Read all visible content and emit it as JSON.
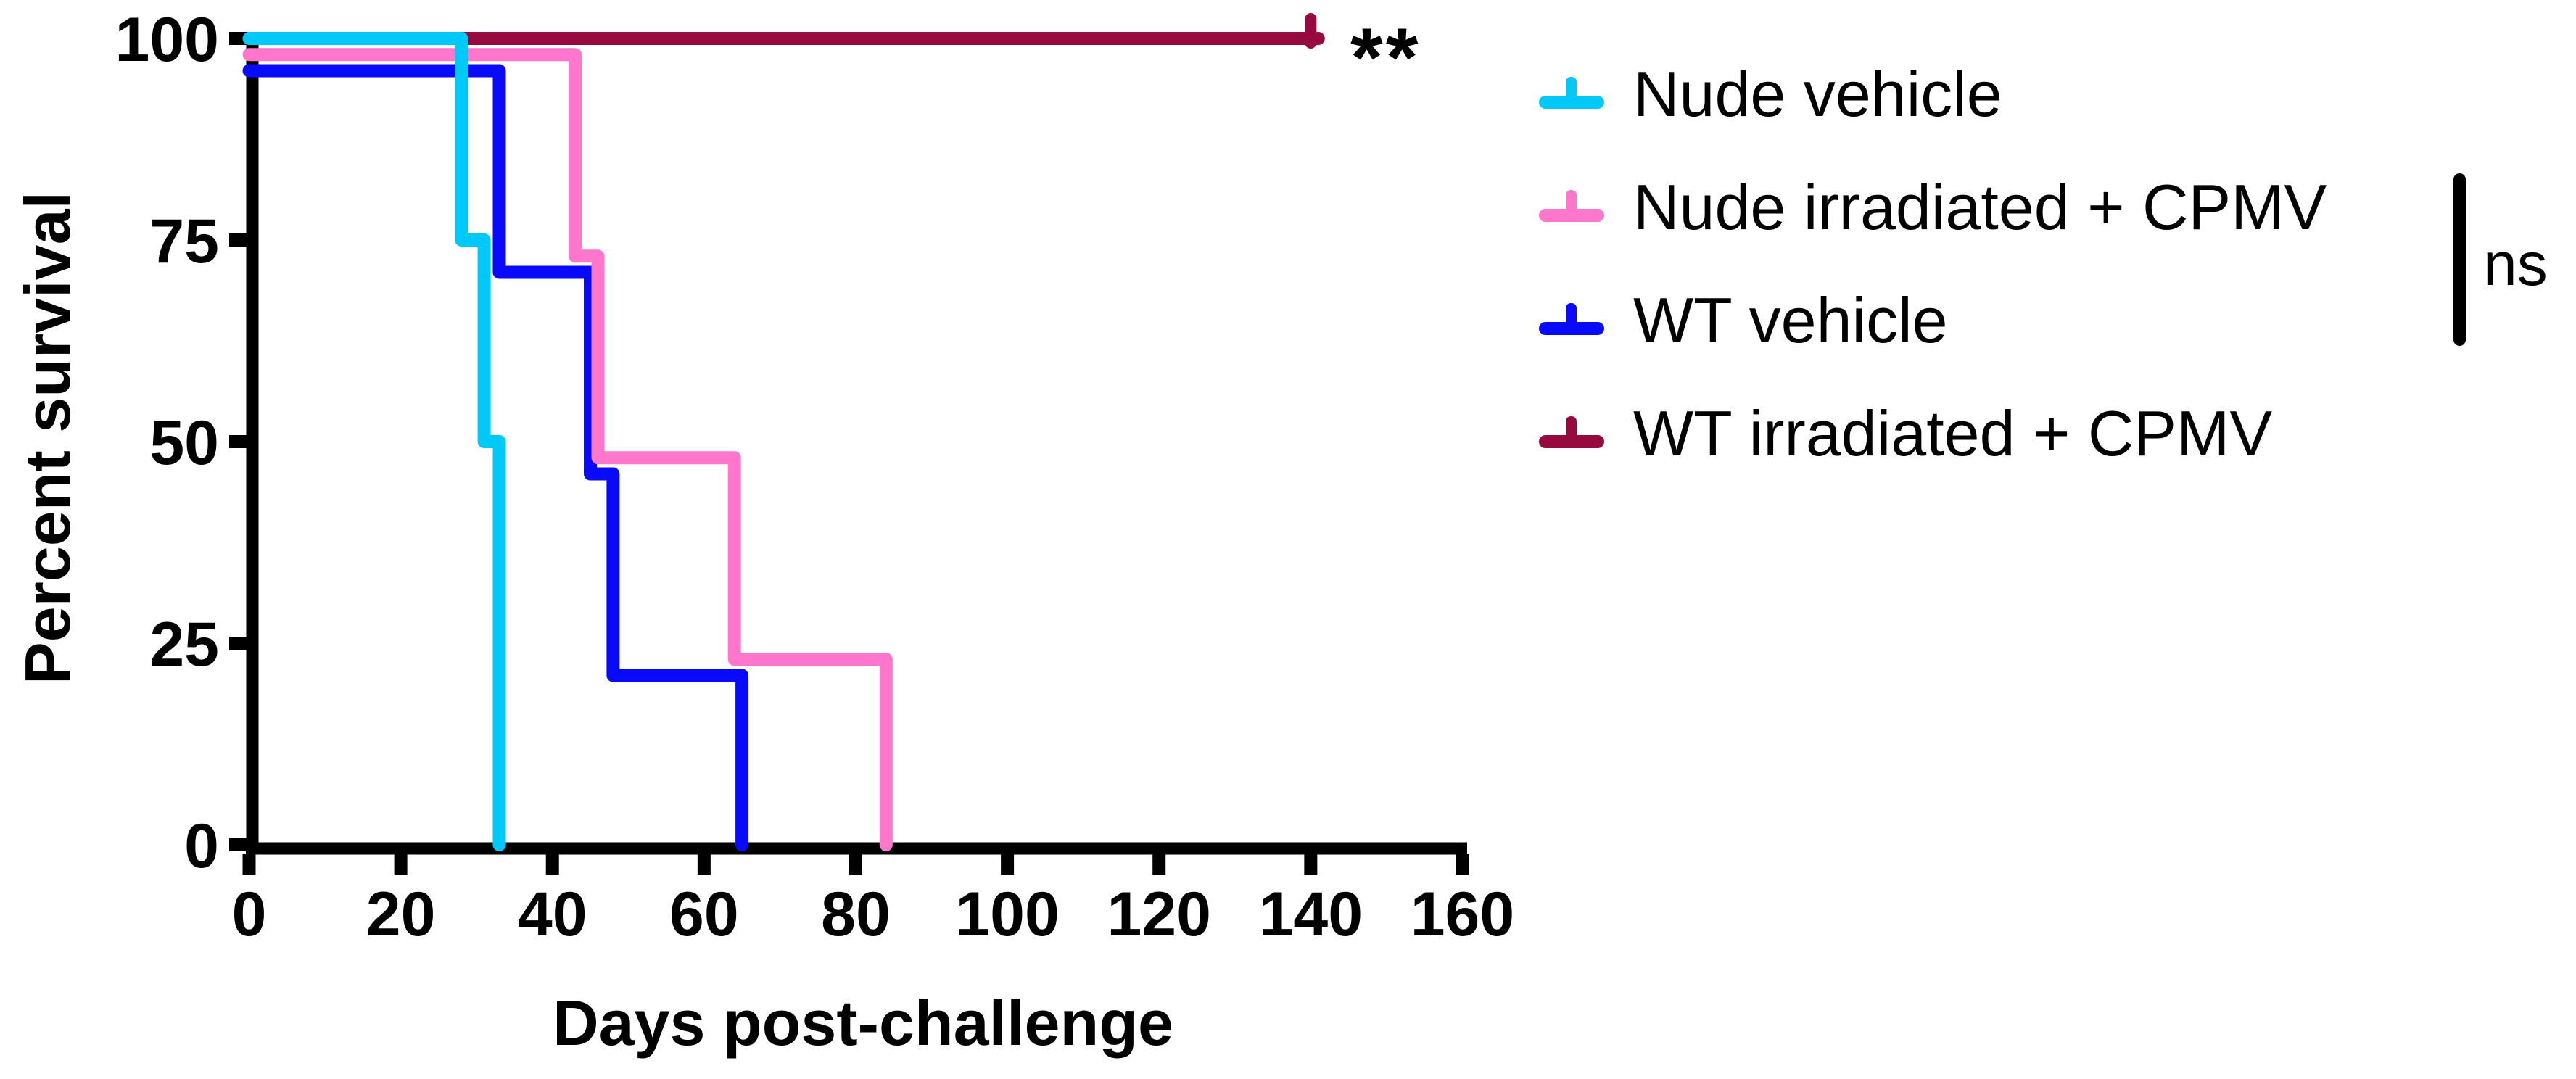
{
  "chart_data": {
    "type": "line",
    "subtype": "kaplan_meier_step_survival",
    "title": "",
    "xlabel": "Days post-challenge",
    "ylabel": "Percent survival",
    "xlim": [
      0,
      160
    ],
    "ylim": [
      0,
      100
    ],
    "x_ticks": [
      0,
      20,
      40,
      60,
      80,
      100,
      120,
      140,
      160
    ],
    "y_ticks": [
      100,
      75,
      50,
      25,
      0
    ],
    "grid": false,
    "legend_position": "right",
    "axis_color": "#000000",
    "series": [
      {
        "name": "Nude vehicle",
        "color": "#00C9F7",
        "draw_offset_pct": 0,
        "points": [
          [
            0,
            100
          ],
          [
            28,
            100
          ],
          [
            28,
            75
          ],
          [
            31,
            75
          ],
          [
            31,
            50
          ],
          [
            33,
            50
          ],
          [
            33,
            0
          ]
        ],
        "censor_ticks": []
      },
      {
        "name": "Nude irradiated + CPMV",
        "color": "#FF77CD",
        "draw_offset_pct": -2,
        "points": [
          [
            0,
            100
          ],
          [
            43,
            100
          ],
          [
            43,
            75
          ],
          [
            46,
            75
          ],
          [
            46,
            50
          ],
          [
            64,
            50
          ],
          [
            64,
            25
          ],
          [
            84,
            25
          ],
          [
            84,
            0
          ]
        ],
        "censor_ticks": []
      },
      {
        "name": "WT vehicle",
        "color": "#0A0AFA",
        "draw_offset_pct": -4,
        "points": [
          [
            0,
            100
          ],
          [
            33,
            100
          ],
          [
            33,
            75
          ],
          [
            45,
            75
          ],
          [
            45,
            50
          ],
          [
            48,
            50
          ],
          [
            48,
            25
          ],
          [
            65,
            25
          ],
          [
            65,
            0
          ]
        ],
        "censor_ticks": []
      },
      {
        "name": "WT irradiated + CPMV",
        "color": "#960A40",
        "draw_offset_pct": 0,
        "points": [
          [
            0,
            100
          ],
          [
            141,
            100
          ]
        ],
        "censor_ticks": [
          140
        ]
      }
    ]
  },
  "annotations": {
    "significance_label": "**",
    "comparison_label": "ns"
  }
}
